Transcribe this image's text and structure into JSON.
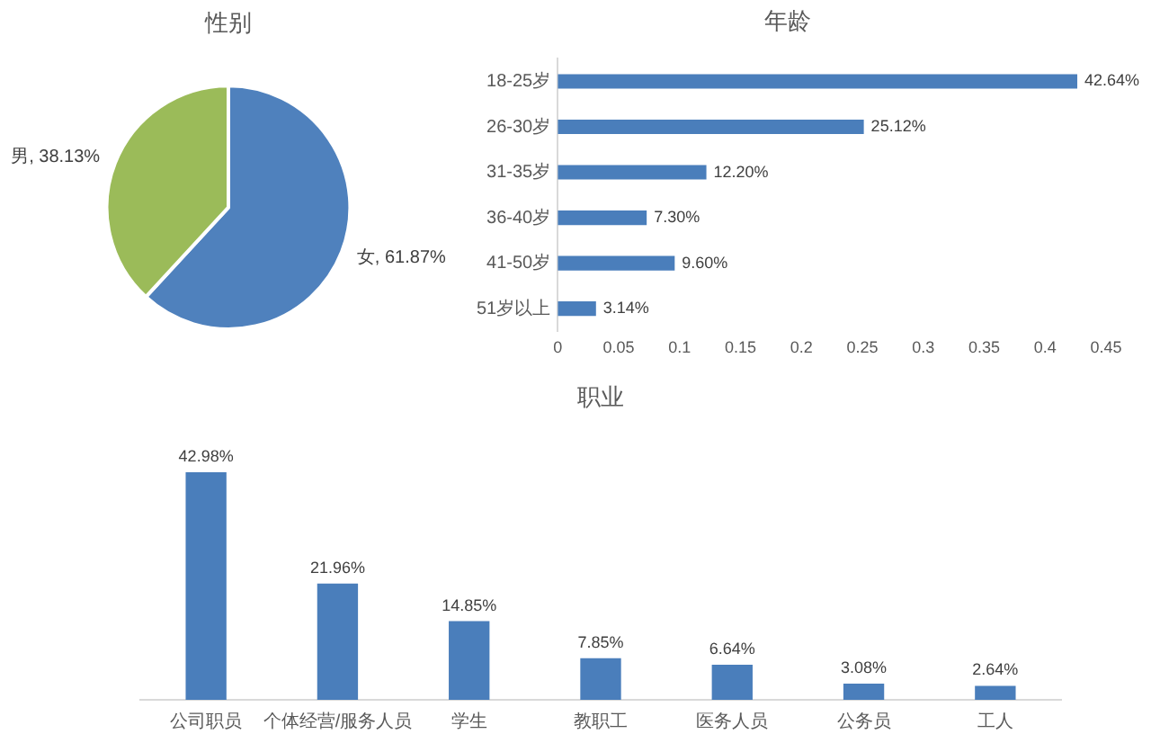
{
  "chart_data": [
    {
      "type": "pie",
      "title": "性别",
      "categories": [
        "女",
        "男"
      ],
      "values": [
        61.87,
        38.13
      ],
      "colors": [
        "#4f81bd",
        "#9bbb59"
      ],
      "value_labels": [
        ", 61.87%",
        ", 38.13%"
      ]
    },
    {
      "type": "bar",
      "orientation": "horizontal",
      "title": "年龄",
      "categories": [
        "18-25岁",
        "26-30岁",
        "31-35岁",
        "36-40岁",
        "41-50岁",
        "51岁以上"
      ],
      "values": [
        0.4264,
        0.2512,
        0.122,
        0.073,
        0.096,
        0.0314
      ],
      "color": "#4a7ebb",
      "xlim": [
        0,
        0.45
      ],
      "xticks": [
        0,
        0.05,
        0.1,
        0.15,
        0.2,
        0.25,
        0.3,
        0.35,
        0.4,
        0.45
      ],
      "value_labels": [
        "42.64%",
        "25.12%",
        "12.20%",
        "7.30%",
        "9.60%",
        "3.14%"
      ]
    },
    {
      "type": "bar",
      "title": "职业",
      "categories": [
        "公司职员",
        "个体经营/服务人员",
        "学生",
        "教职工",
        "医务人员",
        "公务员",
        "工人"
      ],
      "values": [
        42.98,
        21.96,
        14.85,
        7.85,
        6.64,
        3.08,
        2.64
      ],
      "color": "#4a7ebb",
      "value_labels": [
        "42.98%",
        "21.96%",
        "14.85%",
        "7.85%",
        "6.64%",
        "3.08%",
        "2.64%"
      ],
      "tick_labels": "x"
    }
  ]
}
